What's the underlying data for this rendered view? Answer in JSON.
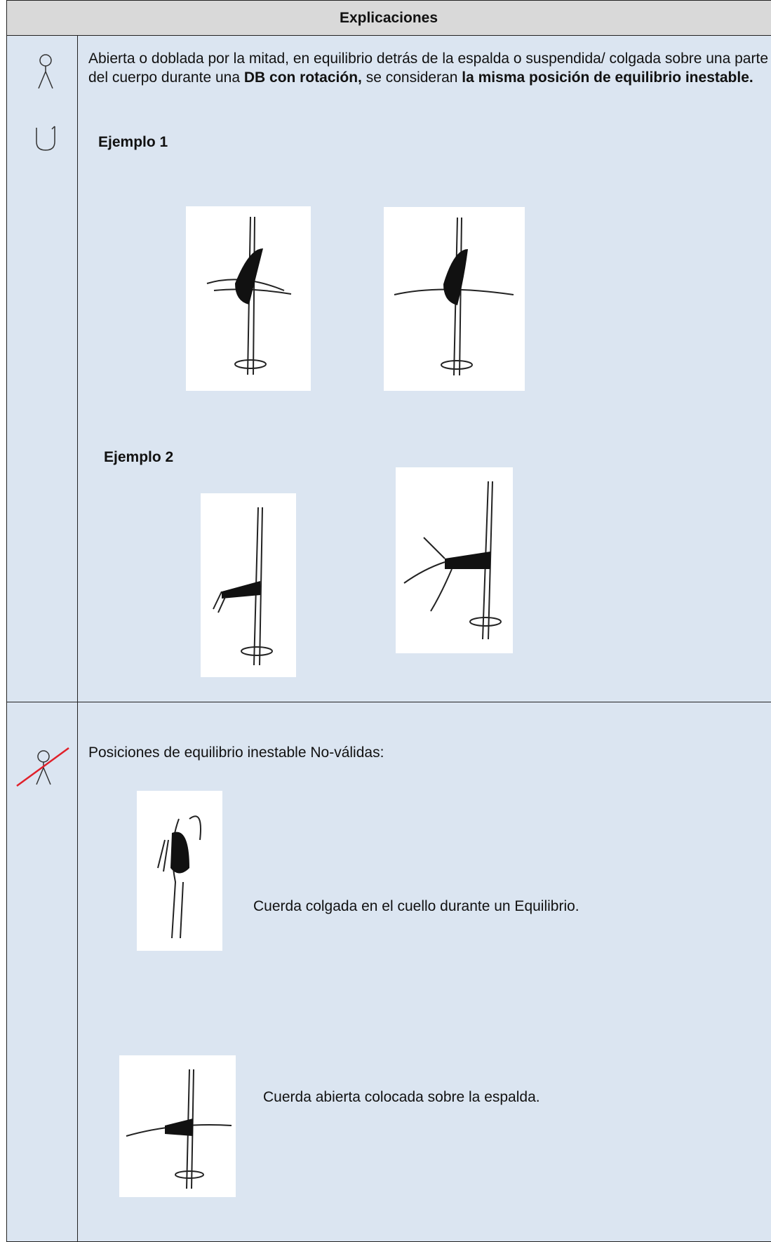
{
  "header": {
    "title": "Explicaciones"
  },
  "rows": [
    {
      "text": [
        "Abierta o doblada por la mitad, en equilibrio detrás de la espalda o suspendida/ colgada sobre una parte del cuerpo durante una ",
        "DB con rotación,",
        " se consideran ",
        "la misma posición de equilibrio inestable."
      ],
      "examples": [
        {
          "label": "Ejemplo 1"
        },
        {
          "label": "Ejemplo 2"
        }
      ]
    },
    {
      "text": "Posiciones de equilibrio inestable No-válidas:",
      "captions": [
        "Cuerda colgada en el cuello durante un Equilibrio.",
        "Cuerda abierta colocada sobre la espalda."
      ]
    }
  ]
}
